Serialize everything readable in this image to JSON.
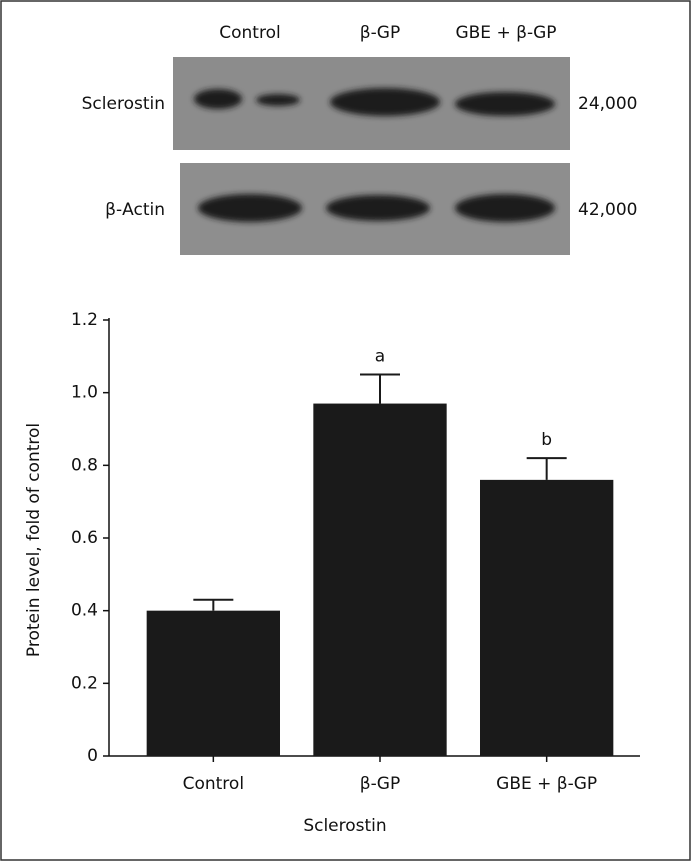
{
  "blot": {
    "lanes": [
      "Control",
      "β-GP",
      "GBE + β-GP"
    ],
    "rows": [
      {
        "label": "Sclerostin",
        "size": "24,000"
      },
      {
        "label": "β-Actin",
        "size": "42,000"
      }
    ]
  },
  "chart_data": {
    "type": "bar",
    "categories": [
      "Control",
      "β-GP",
      "GBE + β-GP"
    ],
    "values": [
      0.4,
      0.97,
      0.76
    ],
    "errors": [
      0.03,
      0.08,
      0.06
    ],
    "annotations": [
      null,
      "a",
      "b"
    ],
    "color": "#1a1a1a",
    "xlabel": "Sclerostin",
    "ylabel": "Protein level, fold of control",
    "ylim": [
      0,
      1.2
    ],
    "yticks": [
      0,
      0.2,
      0.4,
      0.6,
      0.8,
      {
        "value": 1,
        "label": "1.0"
      },
      1.2
    ]
  }
}
